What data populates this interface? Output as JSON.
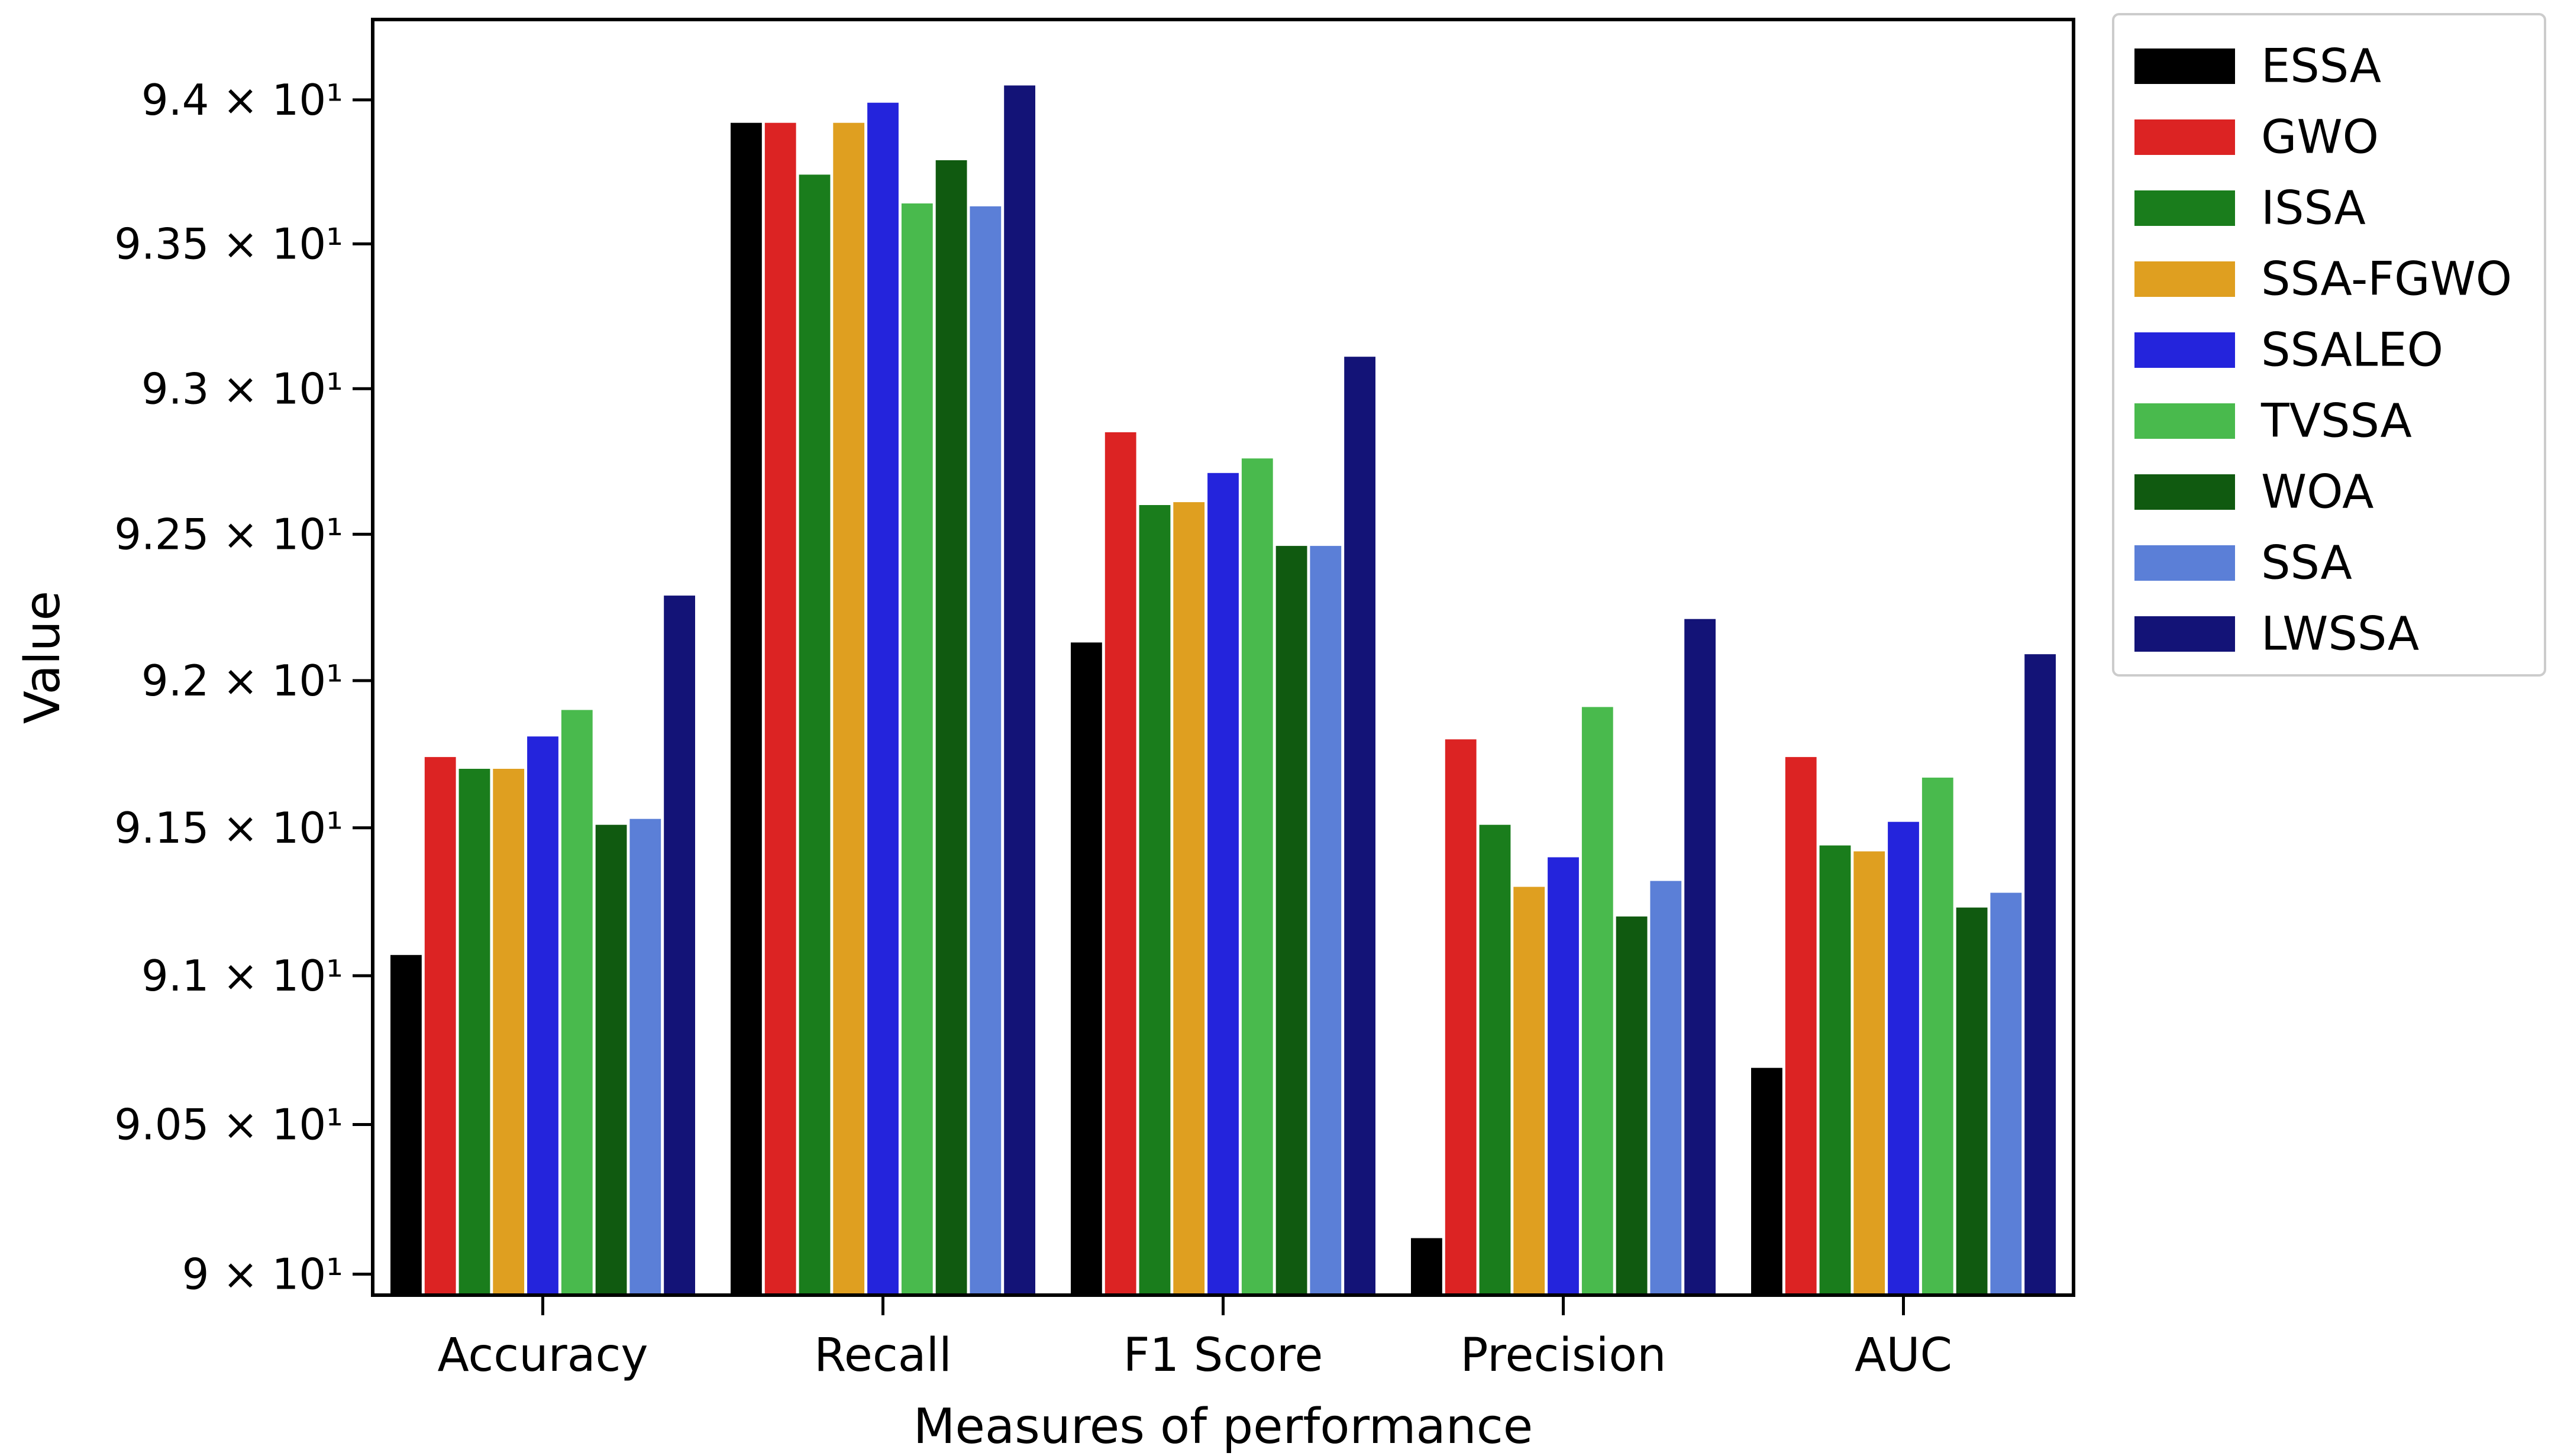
{
  "chart_data": {
    "type": "bar",
    "title": "",
    "xlabel": "Measures of performance",
    "ylabel": "Value",
    "yscale": "log",
    "ylim": [
      89.93,
      94.28
    ],
    "grid": false,
    "legend_position": "outside upper right",
    "categories": [
      "Accuracy",
      "Recall",
      "F1 Score",
      "Precision",
      "AUC"
    ],
    "series": [
      {
        "name": "ESSA",
        "color": "#000000",
        "values": [
          91.07,
          93.92,
          92.13,
          90.12,
          90.69
        ]
      },
      {
        "name": "GWO",
        "color": "#dc2323",
        "values": [
          91.74,
          93.92,
          92.85,
          91.8,
          91.74
        ]
      },
      {
        "name": "ISSA",
        "color": "#1a7d1c",
        "values": [
          91.7,
          93.74,
          92.6,
          91.51,
          91.44
        ]
      },
      {
        "name": "SSA-FGWO",
        "color": "#df9f20",
        "values": [
          91.7,
          93.92,
          92.61,
          91.3,
          91.42
        ]
      },
      {
        "name": "SSALEO",
        "color": "#2424dc",
        "values": [
          91.81,
          93.99,
          92.71,
          91.4,
          91.52
        ]
      },
      {
        "name": "TVSSA",
        "color": "#49ba4d",
        "values": [
          91.9,
          93.64,
          92.76,
          91.91,
          91.67
        ]
      },
      {
        "name": "WOA",
        "color": "#105a10",
        "values": [
          91.51,
          93.79,
          92.46,
          91.2,
          91.23
        ]
      },
      {
        "name": "SSA",
        "color": "#5b7fd7",
        "values": [
          91.53,
          93.63,
          92.46,
          91.32,
          91.28
        ]
      },
      {
        "name": "LWSSA",
        "color": "#131377",
        "values": [
          92.29,
          94.05,
          93.11,
          92.21,
          92.09
        ]
      }
    ],
    "y_ticks": [
      {
        "value": 90.0,
        "label": "9 × 10¹"
      },
      {
        "value": 90.5,
        "label": "9.05 × 10¹"
      },
      {
        "value": 91.0,
        "label": "9.1 × 10¹"
      },
      {
        "value": 91.5,
        "label": "9.15 × 10¹"
      },
      {
        "value": 92.0,
        "label": "9.2 × 10¹"
      },
      {
        "value": 92.5,
        "label": "9.25 × 10¹"
      },
      {
        "value": 93.0,
        "label": "9.3 × 10¹"
      },
      {
        "value": 93.5,
        "label": "9.35 × 10¹"
      },
      {
        "value": 94.0,
        "label": "9.4 × 10¹"
      }
    ],
    "colors": {
      "text": "#000000",
      "spine": "#000000",
      "legend_border": "#cccccc",
      "background": "#ffffff"
    }
  }
}
